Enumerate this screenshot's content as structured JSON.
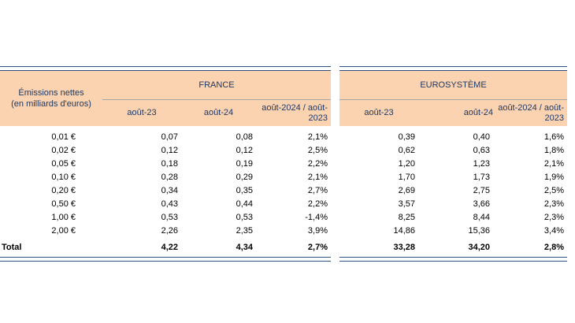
{
  "header": {
    "row_label_line1": "Émissions nettes",
    "row_label_line2": "(en milliards d'euros)",
    "france": "FRANCE",
    "eurosysteme": "EUROSYSTÈME",
    "col_aug23": "août-23",
    "col_aug24": "août-24",
    "col_var_line1": "août-2024 / août-",
    "col_var_line2": "2023"
  },
  "rows": [
    {
      "label": "0,01 €",
      "fr23": "0,07",
      "fr24": "0,08",
      "frvar": "2,1%",
      "eu23": "0,39",
      "eu24": "0,40",
      "euvar": "1,6%"
    },
    {
      "label": "0,02 €",
      "fr23": "0,12",
      "fr24": "0,12",
      "frvar": "2,5%",
      "eu23": "0,62",
      "eu24": "0,63",
      "euvar": "1,8%"
    },
    {
      "label": "0,05 €",
      "fr23": "0,18",
      "fr24": "0,19",
      "frvar": "2,2%",
      "eu23": "1,20",
      "eu24": "1,23",
      "euvar": "2,1%"
    },
    {
      "label": "0,10 €",
      "fr23": "0,28",
      "fr24": "0,29",
      "frvar": "2,1%",
      "eu23": "1,70",
      "eu24": "1,73",
      "euvar": "1,9%"
    },
    {
      "label": "0,20 €",
      "fr23": "0,34",
      "fr24": "0,35",
      "frvar": "2,7%",
      "eu23": "2,69",
      "eu24": "2,75",
      "euvar": "2,5%"
    },
    {
      "label": "0,50 €",
      "fr23": "0,43",
      "fr24": "0,44",
      "frvar": "2,2%",
      "eu23": "3,57",
      "eu24": "3,66",
      "euvar": "2,3%"
    },
    {
      "label": "1,00 €",
      "fr23": "0,53",
      "fr24": "0,53",
      "frvar": "-1,4%",
      "eu23": "8,25",
      "eu24": "8,44",
      "euvar": "2,3%"
    },
    {
      "label": "2,00 €",
      "fr23": "2,26",
      "fr24": "2,35",
      "frvar": "3,9%",
      "eu23": "14,86",
      "eu24": "15,36",
      "euvar": "3,4%"
    }
  ],
  "total": {
    "label": "Total",
    "fr23": "4,22",
    "fr24": "4,34",
    "frvar": "2,7%",
    "eu23": "33,28",
    "eu24": "34,20",
    "euvar": "2,8%"
  }
}
